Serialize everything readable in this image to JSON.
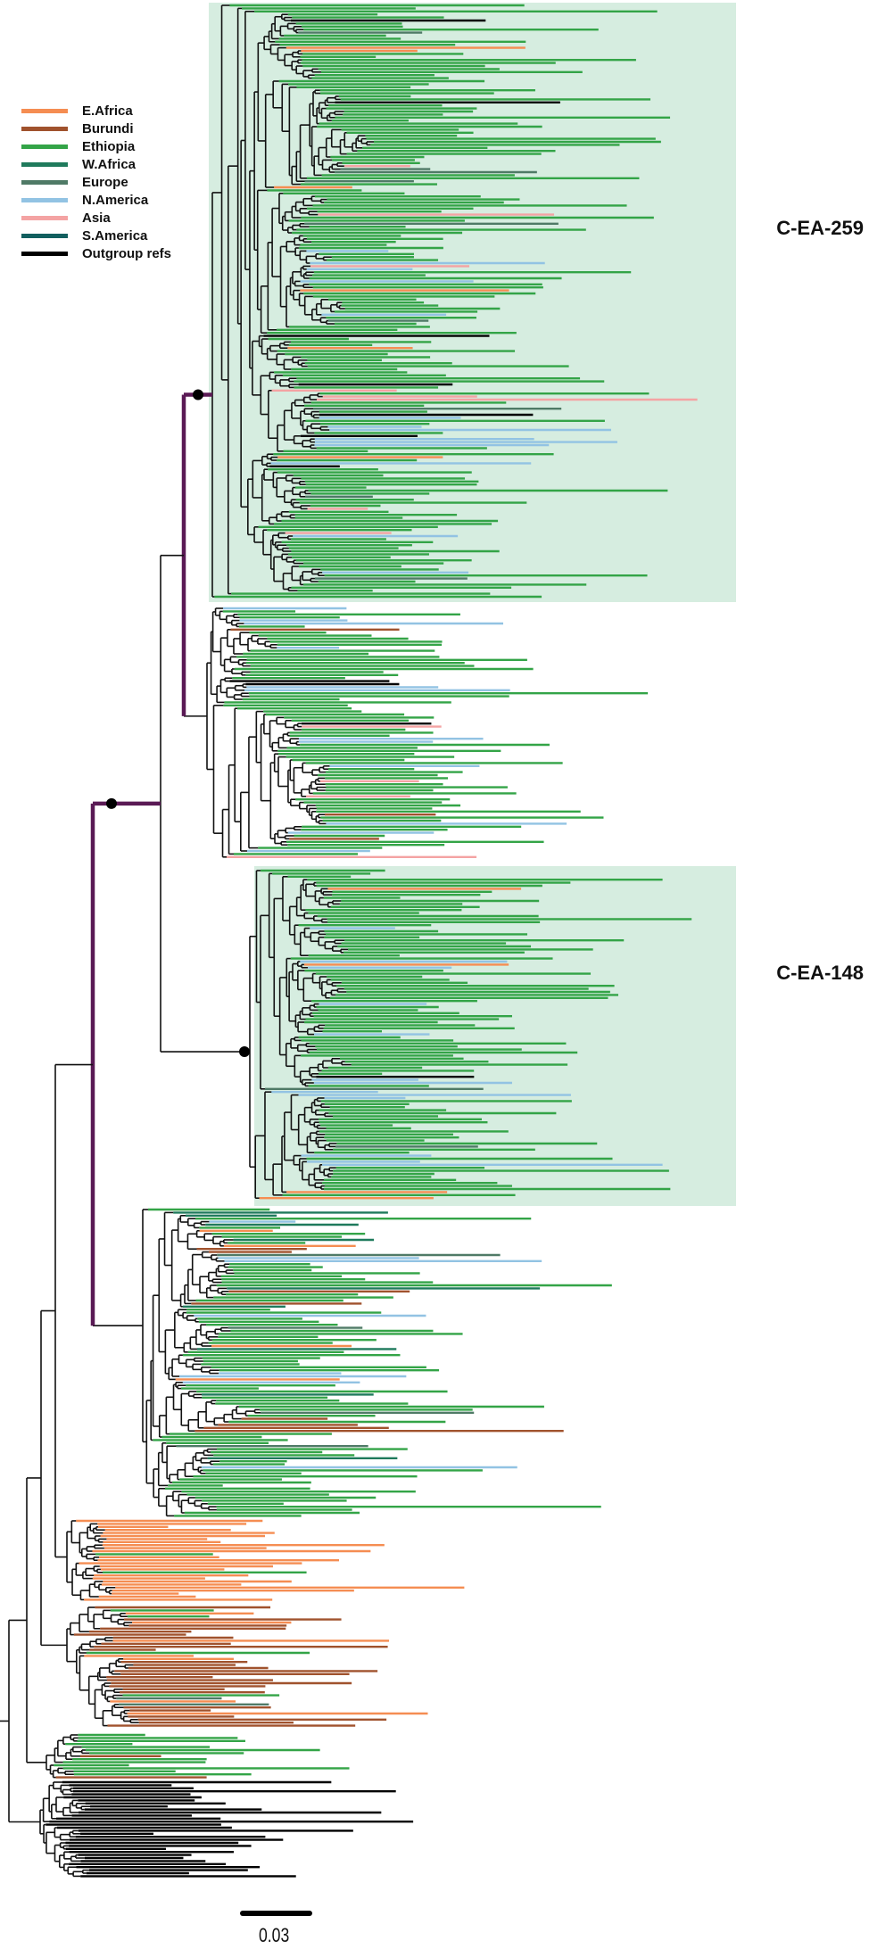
{
  "legend": [
    {
      "label": "E.Africa",
      "color": "#f58d52"
    },
    {
      "label": "Burundi",
      "color": "#a0522d"
    },
    {
      "label": "Ethiopia",
      "color": "#33a447"
    },
    {
      "label": "W.Africa",
      "color": "#1f7a5c"
    },
    {
      "label": "Europe",
      "color": "#4f7a66"
    },
    {
      "label": "N.America",
      "color": "#92c3e3"
    },
    {
      "label": "Asia",
      "color": "#f4a3a3"
    },
    {
      "label": "S.America",
      "color": "#125f5f"
    },
    {
      "label": "Outgroup refs",
      "color": "#000000"
    }
  ],
  "clades": [
    {
      "label": "C-EA-259",
      "highlight": "#d6ede0"
    },
    {
      "label": "C-EA-148",
      "highlight": "#d6ede0"
    }
  ],
  "highlight_branch_color": "#5a1a55",
  "scale_bar": {
    "label": "0.03"
  }
}
